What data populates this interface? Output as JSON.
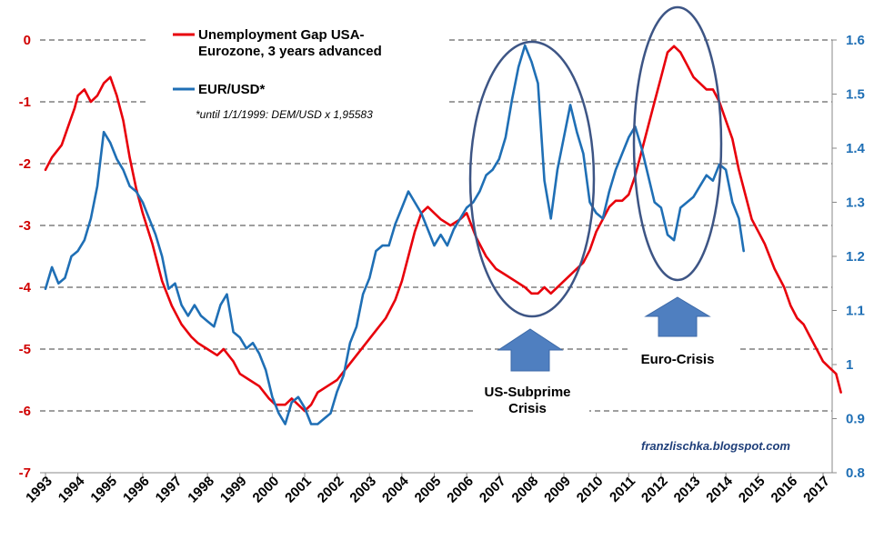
{
  "chart_data": {
    "type": "line",
    "legend": {
      "series1_lines": [
        "Unemployment Gap USA-",
        "Eurozone, 3 years advanced"
      ],
      "series2_label": "EUR/USD*",
      "footnote": "*until 1/1/1999: DEM/USD x 1,95583",
      "placement": "top-left"
    },
    "source": "franzlischka.blogspot.com",
    "x_ticks": [
      "1993",
      "1994",
      "1995",
      "1996",
      "1997",
      "1998",
      "1999",
      "2000",
      "2001",
      "2002",
      "2003",
      "2004",
      "2005",
      "2006",
      "2007",
      "2008",
      "2009",
      "2010",
      "2011",
      "2012",
      "2013",
      "2014",
      "2015",
      "2016",
      "2017"
    ],
    "y_left": {
      "ticks": [
        "0",
        "-1",
        "-2",
        "-3",
        "-4",
        "-5",
        "-6",
        "-7"
      ],
      "range": [
        -7,
        0
      ],
      "color": "#e00000"
    },
    "y_right": {
      "ticks": [
        "1.6",
        "1.5",
        "1.4",
        "1.3",
        "1.2",
        "1.1",
        "1",
        "0.9",
        "0.8"
      ],
      "range": [
        0.8,
        1.6
      ],
      "color": "#1f6fb5"
    },
    "grid": "dashed horizontal",
    "series": [
      {
        "name": "Unemployment Gap USA-Eurozone, 3 years advanced",
        "axis": "left",
        "color": "#e8000b",
        "x": [
          1993.0,
          1993.2,
          1993.5,
          1993.7,
          1993.9,
          1994.0,
          1994.2,
          1994.4,
          1994.6,
          1994.8,
          1995.0,
          1995.2,
          1995.4,
          1995.6,
          1995.8,
          1996.0,
          1996.3,
          1996.6,
          1996.9,
          1997.2,
          1997.5,
          1997.7,
          1998.0,
          1998.3,
          1998.5,
          1998.8,
          1999.0,
          1999.3,
          1999.6,
          1999.9,
          2000.1,
          2000.4,
          2000.6,
          2000.8,
          2001.0,
          2001.2,
          2001.4,
          2001.7,
          2002.0,
          2002.3,
          2002.6,
          2002.9,
          2003.2,
          2003.5,
          2003.8,
          2004.0,
          2004.2,
          2004.4,
          2004.6,
          2004.8,
          2005.0,
          2005.2,
          2005.5,
          2005.8,
          2006.0,
          2006.3,
          2006.6,
          2006.9,
          2007.2,
          2007.5,
          2007.8,
          2008.0,
          2008.2,
          2008.4,
          2008.6,
          2008.8,
          2009.0,
          2009.2,
          2009.4,
          2009.6,
          2009.8,
          2010.0,
          2010.2,
          2010.4,
          2010.6,
          2010.8,
          2011.0,
          2011.2,
          2011.4,
          2011.6,
          2011.8,
          2012.0,
          2012.2,
          2012.4,
          2012.6,
          2012.8,
          2013.0,
          2013.2,
          2013.4,
          2013.6,
          2013.8,
          2014.0,
          2014.2,
          2014.4,
          2014.6,
          2014.8,
          2015.0,
          2015.2,
          2015.5,
          2015.8,
          2016.0,
          2016.2,
          2016.4,
          2016.6,
          2016.8,
          2017.0,
          2017.2,
          2017.4,
          2017.55
        ],
        "values": [
          -2.1,
          -1.9,
          -1.7,
          -1.4,
          -1.1,
          -0.9,
          -0.8,
          -1.0,
          -0.9,
          -0.7,
          -0.6,
          -0.9,
          -1.3,
          -1.9,
          -2.4,
          -2.8,
          -3.3,
          -3.9,
          -4.3,
          -4.6,
          -4.8,
          -4.9,
          -5.0,
          -5.1,
          -5.0,
          -5.2,
          -5.4,
          -5.5,
          -5.6,
          -5.8,
          -5.9,
          -5.9,
          -5.8,
          -5.9,
          -6.0,
          -5.9,
          -5.7,
          -5.6,
          -5.5,
          -5.3,
          -5.1,
          -4.9,
          -4.7,
          -4.5,
          -4.2,
          -3.9,
          -3.5,
          -3.1,
          -2.8,
          -2.7,
          -2.8,
          -2.9,
          -3.0,
          -2.9,
          -2.8,
          -3.2,
          -3.5,
          -3.7,
          -3.8,
          -3.9,
          -4.0,
          -4.1,
          -4.1,
          -4.0,
          -4.1,
          -4.0,
          -3.9,
          -3.8,
          -3.7,
          -3.6,
          -3.4,
          -3.1,
          -2.9,
          -2.7,
          -2.6,
          -2.6,
          -2.5,
          -2.2,
          -1.8,
          -1.4,
          -1.0,
          -0.6,
          -0.2,
          -0.1,
          -0.2,
          -0.4,
          -0.6,
          -0.7,
          -0.8,
          -0.8,
          -1.0,
          -1.3,
          -1.6,
          -2.1,
          -2.5,
          -2.9,
          -3.1,
          -3.3,
          -3.7,
          -4.0,
          -4.3,
          -4.5,
          -4.6,
          -4.8,
          -5.0,
          -5.2,
          -5.3,
          -5.4,
          -5.7
        ]
      },
      {
        "name": "EUR/USD*",
        "axis": "right",
        "color": "#1f6fb5",
        "x": [
          1993.0,
          1993.2,
          1993.4,
          1993.6,
          1993.8,
          1994.0,
          1994.2,
          1994.4,
          1994.6,
          1994.8,
          1995.0,
          1995.2,
          1995.4,
          1995.6,
          1995.8,
          1996.0,
          1996.2,
          1996.4,
          1996.6,
          1996.8,
          1997.0,
          1997.2,
          1997.4,
          1997.6,
          1997.8,
          1998.0,
          1998.2,
          1998.4,
          1998.6,
          1998.8,
          1999.0,
          1999.2,
          1999.4,
          1999.6,
          1999.8,
          2000.0,
          2000.2,
          2000.4,
          2000.6,
          2000.8,
          2001.0,
          2001.2,
          2001.4,
          2001.6,
          2001.8,
          2002.0,
          2002.2,
          2002.4,
          2002.6,
          2002.8,
          2003.0,
          2003.2,
          2003.4,
          2003.6,
          2003.8,
          2004.0,
          2004.2,
          2004.4,
          2004.6,
          2004.8,
          2005.0,
          2005.2,
          2005.4,
          2005.6,
          2005.8,
          2006.0,
          2006.2,
          2006.4,
          2006.6,
          2006.8,
          2007.0,
          2007.2,
          2007.4,
          2007.6,
          2007.8,
          2008.0,
          2008.2,
          2008.4,
          2008.6,
          2008.8,
          2009.0,
          2009.2,
          2009.4,
          2009.6,
          2009.8,
          2010.0,
          2010.2,
          2010.4,
          2010.6,
          2010.8,
          2011.0,
          2011.2,
          2011.4,
          2011.6,
          2011.8,
          2012.0,
          2012.2,
          2012.4,
          2012.6,
          2012.8,
          2013.0,
          2013.2,
          2013.4,
          2013.6,
          2013.8,
          2014.0,
          2014.2,
          2014.4,
          2014.55
        ],
        "values": [
          1.14,
          1.18,
          1.15,
          1.16,
          1.2,
          1.21,
          1.23,
          1.27,
          1.33,
          1.43,
          1.41,
          1.38,
          1.36,
          1.33,
          1.32,
          1.3,
          1.27,
          1.24,
          1.2,
          1.14,
          1.15,
          1.11,
          1.09,
          1.11,
          1.09,
          1.08,
          1.07,
          1.11,
          1.13,
          1.06,
          1.05,
          1.03,
          1.04,
          1.02,
          0.99,
          0.94,
          0.91,
          0.89,
          0.93,
          0.94,
          0.92,
          0.89,
          0.89,
          0.9,
          0.91,
          0.95,
          0.98,
          1.04,
          1.07,
          1.13,
          1.16,
          1.21,
          1.22,
          1.22,
          1.26,
          1.29,
          1.32,
          1.3,
          1.28,
          1.25,
          1.22,
          1.24,
          1.22,
          1.25,
          1.27,
          1.29,
          1.3,
          1.32,
          1.35,
          1.36,
          1.38,
          1.42,
          1.49,
          1.55,
          1.59,
          1.56,
          1.52,
          1.34,
          1.27,
          1.36,
          1.42,
          1.48,
          1.43,
          1.39,
          1.3,
          1.28,
          1.27,
          1.32,
          1.36,
          1.39,
          1.42,
          1.44,
          1.4,
          1.35,
          1.3,
          1.29,
          1.24,
          1.23,
          1.29,
          1.3,
          1.31,
          1.33,
          1.35,
          1.34,
          1.37,
          1.36,
          1.3,
          1.27,
          1.21
        ]
      }
    ],
    "annotations": [
      {
        "lines": [
          "US-Subprime",
          "Crisis"
        ]
      },
      {
        "lines": [
          "Euro-Crisis"
        ]
      }
    ]
  }
}
